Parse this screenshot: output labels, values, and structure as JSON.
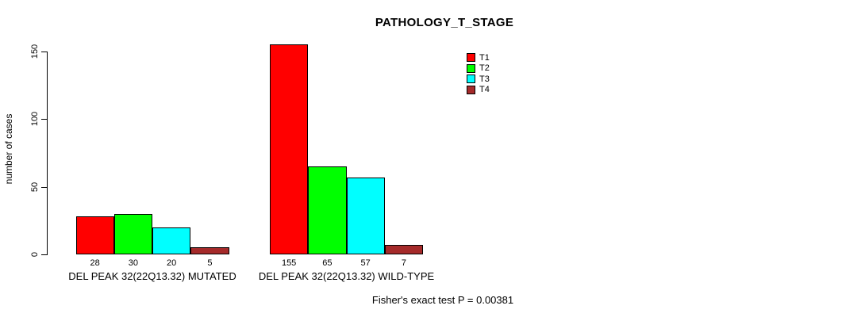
{
  "chart_data": {
    "type": "bar",
    "title": "PATHOLOGY_T_STAGE",
    "xlabel": "",
    "ylabel": "number of cases",
    "ylim": [
      0,
      155
    ],
    "yticks": [
      0,
      50,
      100,
      150
    ],
    "grid": false,
    "legend_position": "top-right-inside",
    "groups": [
      "DEL PEAK 32(22Q13.32) MUTATED",
      "DEL PEAK 32(22Q13.32) WILD-TYPE"
    ],
    "series": [
      {
        "name": "T1",
        "color": "#FF0000",
        "values": [
          28,
          155
        ]
      },
      {
        "name": "T2",
        "color": "#00FF00",
        "values": [
          30,
          65
        ]
      },
      {
        "name": "T3",
        "color": "#00FFFF",
        "values": [
          20,
          57
        ]
      },
      {
        "name": "T4",
        "color": "#A52A2A",
        "values": [
          5,
          7
        ]
      }
    ],
    "bar_value_labels": [
      [
        28,
        30,
        20,
        5
      ],
      [
        155,
        65,
        57,
        7
      ]
    ],
    "annotation": "Fisher's exact test P = 0.00381"
  }
}
